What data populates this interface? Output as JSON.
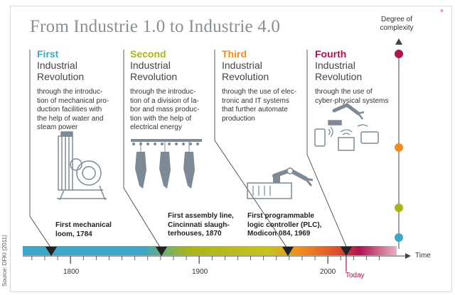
{
  "title": "From Industrie 1.0 to Industrie 4.0",
  "close_icon": "×",
  "degree_label": [
    "Degree of",
    "complexity"
  ],
  "time_label": "Time",
  "source": "Source: DFKI (2011)",
  "revolutions": [
    {
      "number": "First",
      "name": [
        "Industrial",
        "Revolution"
      ],
      "color": "#3aa8c6",
      "description": [
        "through the introduc-",
        "tion of mechanical pro-",
        "duction facilities with",
        "the help of water and",
        "steam power"
      ]
    },
    {
      "number": "Second",
      "name": [
        "Industrial",
        "Revolution"
      ],
      "color": "#a7b51a",
      "description": [
        "through the introduc-",
        "tion of a division of la-",
        "bor and mass produc-",
        "tion with the help of",
        "electrical energy"
      ]
    },
    {
      "number": "Third",
      "name": [
        "Industrial",
        "Revolution"
      ],
      "color": "#f28c1e",
      "description": [
        "through the use of elec-",
        "tronic and IT systems",
        "that further automate",
        "production"
      ]
    },
    {
      "number": "Fourth",
      "name": [
        "Industrial",
        "Revolution"
      ],
      "color": "#b2124f",
      "description": [
        "through the use of",
        "cyber-physical systems"
      ]
    }
  ],
  "milestones": [
    {
      "lines": [
        "First mechanical",
        "loom, 1784"
      ]
    },
    {
      "lines": [
        "First assembly line,",
        "Cincinnati slaugh-",
        "terhouses, 1870"
      ]
    },
    {
      "lines": [
        "First programmable",
        "logic controller (PLC),",
        "Modicon 084, 1969"
      ]
    }
  ],
  "axis": {
    "ticks": [
      "1800",
      "1900",
      "2000"
    ],
    "today_label": "Today",
    "today_color": "#b2124f",
    "milestone_years": [
      1784,
      1870,
      1969,
      2014
    ]
  },
  "complexity_levels": [
    {
      "era": "First",
      "color": "#3aa8c6"
    },
    {
      "era": "Second",
      "color": "#a7b51a"
    },
    {
      "era": "Third",
      "color": "#f28c1e"
    },
    {
      "era": "Fourth",
      "color": "#b2124f"
    }
  ],
  "icons": [
    "loom-icon",
    "slaughter-line-icon",
    "robot-arm-icon",
    "cyber-physical-devices-icon"
  ]
}
